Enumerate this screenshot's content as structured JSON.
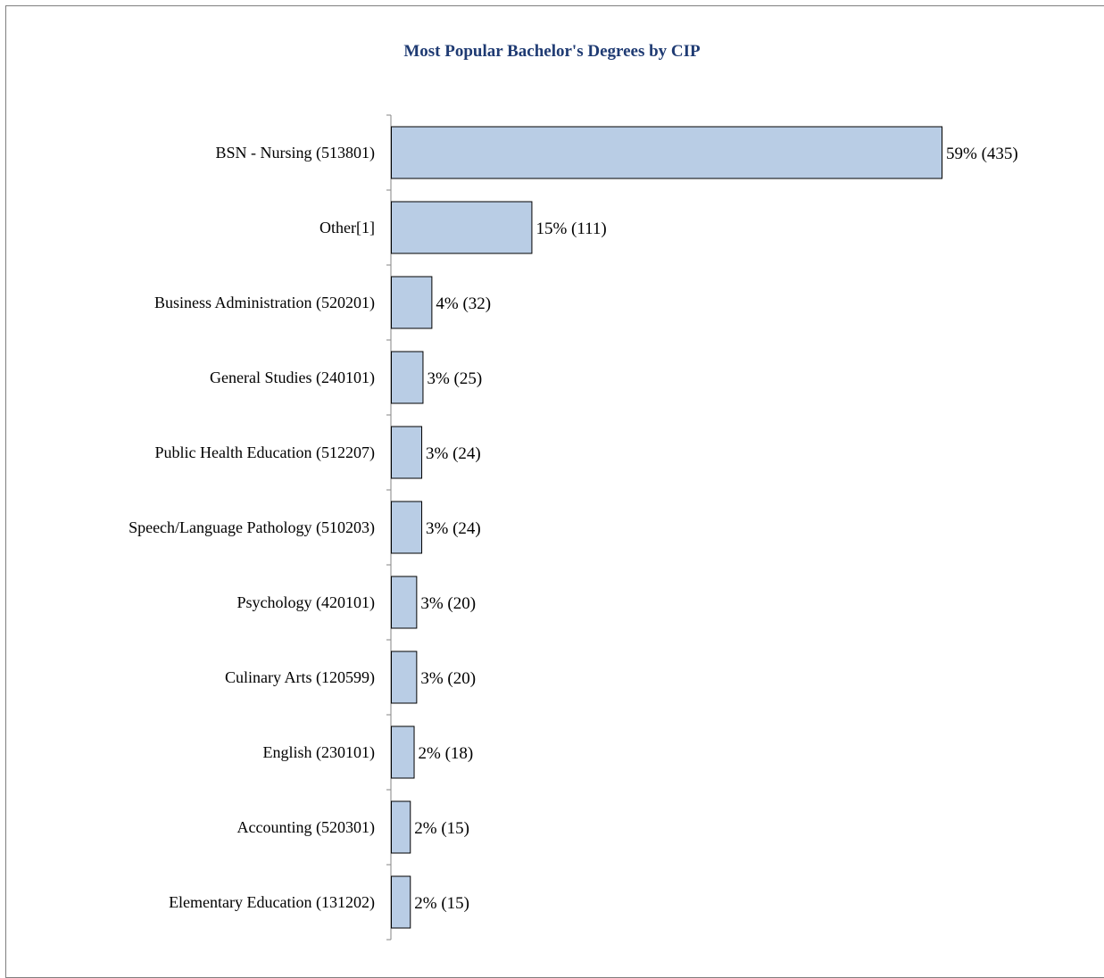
{
  "chart_data": {
    "type": "bar",
    "orientation": "horizontal",
    "title": "Most Popular Bachelor's Degrees by CIP",
    "xlabel": "",
    "ylabel": "",
    "categories": [
      "BSN - Nursing (513801)",
      "Other[1]",
      "Business Administration (520201)",
      "General Studies (240101)",
      "Public Health Education (512207)",
      "Speech/Language Pathology (510203)",
      "Psychology (420101)",
      "Culinary Arts (120599)",
      "English (230101)",
      "Accounting (520301)",
      "Elementary Education (131202)"
    ],
    "values": [
      435,
      111,
      32,
      25,
      24,
      24,
      20,
      20,
      18,
      15,
      15
    ],
    "data_labels": [
      "59% (435)",
      "15% (111)",
      "4% (32)",
      "3% (25)",
      "3% (24)",
      "3% (24)",
      "3% (20)",
      "3% (20)",
      "2% (18)",
      "2% (15)",
      "2% (15)"
    ],
    "xlim": [
      0,
      435
    ],
    "grid": false,
    "legend": "none",
    "colors": {
      "bar_fill": "#b9cde5",
      "bar_stroke": "#000000",
      "title": "#1f3b73",
      "axis": "#868686"
    }
  }
}
